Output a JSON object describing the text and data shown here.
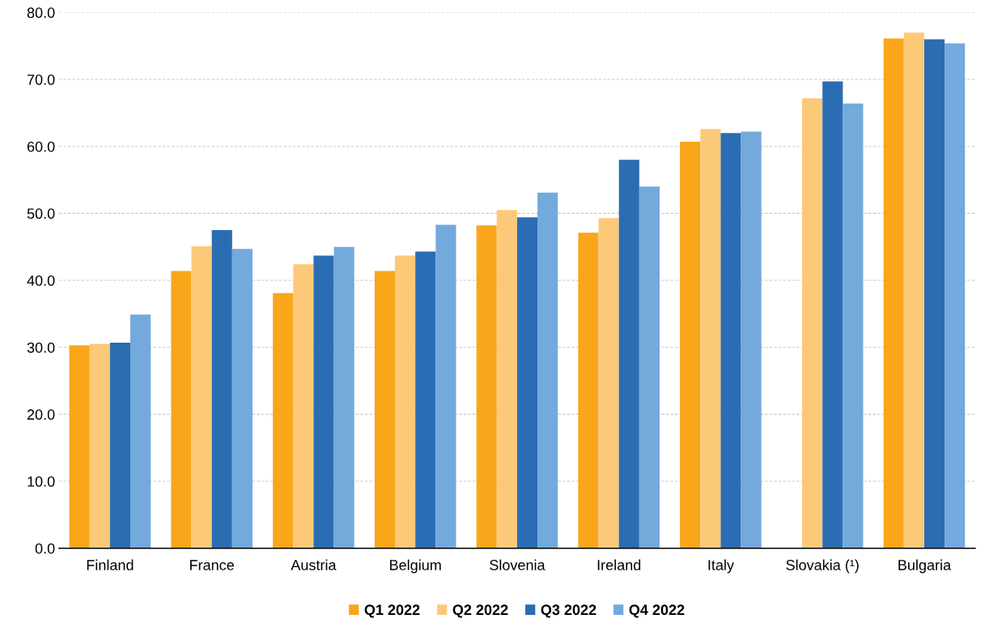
{
  "chart_data": {
    "type": "bar",
    "categories": [
      "Finland",
      "France",
      "Austria",
      "Belgium",
      "Slovenia",
      "Ireland",
      "Italy",
      "Slovakia (¹)",
      "Bulgaria"
    ],
    "series": [
      {
        "name": "Q1 2022",
        "color": "#f9a61a",
        "values": [
          30.3,
          41.4,
          38.1,
          41.4,
          48.2,
          47.1,
          60.7,
          null,
          76.1
        ]
      },
      {
        "name": "Q2 2022",
        "color": "#fcc979",
        "values": [
          30.5,
          45.1,
          42.4,
          43.7,
          50.5,
          49.3,
          62.6,
          67.2,
          77.0
        ]
      },
      {
        "name": "Q3 2022",
        "color": "#2a6db3",
        "values": [
          30.7,
          47.5,
          43.7,
          44.3,
          49.4,
          58.0,
          62.0,
          69.7,
          76.0
        ]
      },
      {
        "name": "Q4 2022",
        "color": "#74a9dc",
        "values": [
          34.9,
          44.7,
          45.0,
          48.3,
          53.1,
          54.0,
          62.2,
          66.4,
          75.4
        ]
      }
    ],
    "ylim": [
      0,
      80
    ],
    "yticks": [
      {
        "value": 0,
        "label": "0.0"
      },
      {
        "value": 10,
        "label": "10.0"
      },
      {
        "value": 20,
        "label": "20.0"
      },
      {
        "value": 30,
        "label": "30.0"
      },
      {
        "value": 40,
        "label": "40.0"
      },
      {
        "value": 50,
        "label": "50.0"
      },
      {
        "value": 60,
        "label": "60.0"
      },
      {
        "value": 70,
        "label": "70.0"
      },
      {
        "value": 80,
        "label": "80.0"
      }
    ],
    "grid": "y",
    "legend": "bottom"
  }
}
